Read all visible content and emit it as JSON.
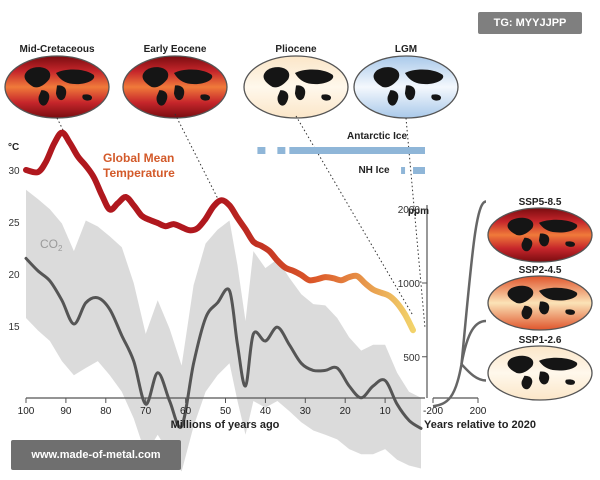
{
  "watermarks": {
    "top_right": "TG: MYYJJPP",
    "bottom_left": "www.made-of-metal.com"
  },
  "chart_data": {
    "type": "line",
    "x_axis": {
      "label": "Millions of years ago",
      "ticks": [
        "100",
        "90",
        "80",
        "70",
        "60",
        "50",
        "40",
        "30",
        "20",
        "10"
      ]
    },
    "y_axis_left": {
      "label": "°C",
      "ticks": [
        "30",
        "25",
        "20",
        "15"
      ]
    },
    "y_axis_right": {
      "label": "ppm",
      "ticks": [
        "2000",
        "1000",
        "500"
      ]
    },
    "future_axis": {
      "label": "Years relative to 2020",
      "ticks": [
        "-200",
        "200"
      ]
    },
    "temperature_series": {
      "name": "Global Mean Temperature",
      "x": [
        100,
        97,
        95,
        93,
        91,
        89,
        87,
        85,
        83,
        81,
        79,
        77,
        75,
        73,
        71,
        69,
        67,
        65,
        63,
        61,
        59,
        57,
        55,
        53,
        51,
        49,
        47,
        45,
        43,
        41,
        39,
        37,
        35,
        33,
        31,
        29,
        27,
        25,
        23,
        21,
        19,
        17,
        15,
        13,
        11,
        9,
        7,
        5,
        3
      ],
      "y": [
        30,
        29.8,
        30.8,
        32.5,
        33.6,
        32.6,
        31.3,
        30.4,
        29.3,
        27.6,
        26.2,
        26.8,
        27.4,
        26.6,
        25.6,
        25.2,
        24.9,
        24.6,
        24.8,
        24.5,
        24.2,
        24.4,
        25.3,
        26.5,
        27.1,
        26.6,
        25.4,
        24.3,
        23.1,
        22.7,
        22.2,
        21.3,
        20.6,
        20.3,
        19.9,
        19.4,
        19.5,
        19.7,
        19.6,
        19.4,
        19.7,
        19.8,
        19.1,
        18.5,
        18.2,
        17.9,
        17.2,
        16.1,
        14.6
      ]
    },
    "co2_series": {
      "name": "CO2",
      "x": [
        100,
        97,
        94,
        91,
        88,
        85,
        82,
        79,
        76,
        73,
        70,
        67,
        64,
        61,
        58,
        55,
        52,
        49,
        47,
        45,
        43,
        40,
        37,
        34,
        31,
        28,
        25,
        22,
        19,
        16,
        13,
        10,
        7,
        4,
        1
      ],
      "ppm": [
        1260,
        1120,
        1020,
        850,
        680,
        830,
        870,
        780,
        610,
        480,
        320,
        430,
        330,
        260,
        470,
        720,
        830,
        930,
        560,
        380,
        620,
        580,
        660,
        560,
        470,
        440,
        440,
        450,
        380,
        340,
        380,
        400,
        320,
        275,
        255
      ],
      "lower_ppm": [
        720,
        640,
        580,
        480,
        420,
        450,
        480,
        420,
        360,
        280,
        200,
        240,
        200,
        170,
        260,
        360,
        420,
        470,
        330,
        240,
        330,
        310,
        330,
        300,
        270,
        250,
        240,
        230,
        210,
        200,
        200,
        210,
        190,
        180,
        175
      ],
      "upper_ppm": [
        2400,
        2200,
        2000,
        1750,
        1350,
        1800,
        1700,
        1550,
        1400,
        1000,
        620,
        850,
        650,
        460,
        980,
        1450,
        1650,
        1800,
        1180,
        700,
        1350,
        1150,
        1250,
        1050,
        900,
        820,
        810,
        720,
        600,
        530,
        560,
        560,
        430,
        360,
        340
      ]
    },
    "scenarios": [
      {
        "name": "SSP5-8.5",
        "ppm_2220": 2150
      },
      {
        "name": "SSP2-4.5",
        "ppm_2220": 700
      },
      {
        "name": "SSP1-2.6",
        "ppm_2220": 400
      }
    ],
    "ice_bars": [
      {
        "label": "Antarctic Ice",
        "ranges": [
          [
            42,
            40
          ],
          [
            37,
            35
          ],
          [
            34,
            0
          ]
        ]
      },
      {
        "label": "NH Ice",
        "ranges": [
          [
            6,
            5
          ],
          [
            3,
            0
          ]
        ]
      }
    ],
    "maps": [
      {
        "label": "Mid-Cretaceous",
        "x": 90
      },
      {
        "label": "Early Eocene",
        "x": 52
      },
      {
        "label": "Pliocene",
        "x": 3
      },
      {
        "label": "LGM",
        "x": 0
      }
    ]
  },
  "colors": {
    "temp_warm": "#b0181e",
    "temp_mid": "#dd5a2a",
    "temp_cool": "#f2d36b",
    "co2_line": "#555555",
    "co2_band": "#d5d5d5",
    "ice": "#8fb6d8",
    "label_temp": "#d35a2a",
    "label_co2": "#9a9a9a",
    "axis": "#555555"
  }
}
